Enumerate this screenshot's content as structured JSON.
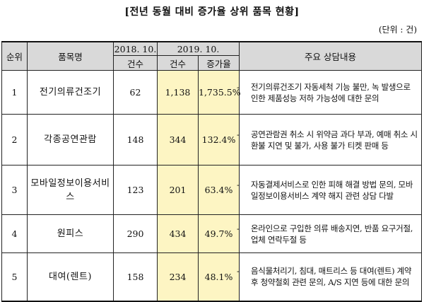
{
  "title": "[전년 동월 대비 증가율 상위 품목 현황]",
  "unit": "(단위 : 건)",
  "headers": {
    "rank": "순위",
    "item": "품목명",
    "prev_period": "2018. 10.",
    "curr_period": "2019. 10.",
    "prev_count": "건수",
    "curr_count": "건수",
    "growth": "증가율",
    "details": "주요 상담내용"
  },
  "rows": [
    {
      "rank": "1",
      "item": "전기의류건조기",
      "prev": "62",
      "curr": "1,138",
      "growth": "1,735.5%",
      "desc": "전기의류건조기 자동세척 기능 불만, 녹 발생으로 인한 제품성능 저하 가능성에 대한 문의"
    },
    {
      "rank": "2",
      "item": "각종공연관람",
      "prev": "148",
      "curr": "344",
      "growth": "132.4%",
      "desc": "공연관람권 취소 시 위약금 과다 부과, 예매 취소 시 환불 지연 및 불가, 사용 불가 티켓 판매 등"
    },
    {
      "rank": "3",
      "item": "모바일정보이용서비스",
      "prev": "123",
      "curr": "201",
      "growth": "63.4%",
      "desc": "자동결제서비스로 인한 피해 해결 방법 문의, 모바일정보이용서비스 계약 해지 관련 상담 다발"
    },
    {
      "rank": "4",
      "item": "원피스",
      "prev": "290",
      "curr": "434",
      "growth": "49.7%",
      "desc": "온라인으로 구입한 의류 배송지연, 반품 요구거절, 업체 연락두절 등"
    },
    {
      "rank": "5",
      "item": "대여(렌트)",
      "prev": "158",
      "curr": "234",
      "growth": "48.1%",
      "desc": "음식물처리기, 침대, 매트리스 등 대여(렌트) 계약 후 청약철회 관련 문의, A/S 지연 등에 대한 문의"
    }
  ]
}
